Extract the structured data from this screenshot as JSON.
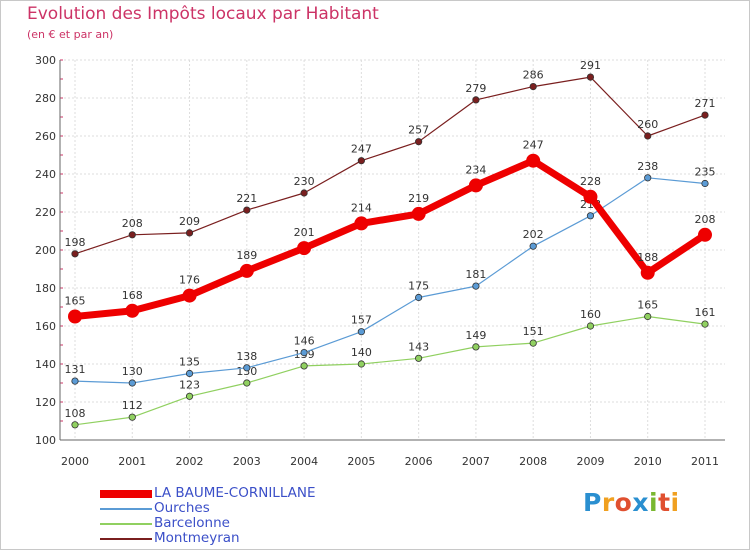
{
  "chart_data": {
    "type": "line",
    "title": "Evolution des Impôts locaux par Habitant",
    "subtitle": "(en € et par an)",
    "xlabel": "",
    "ylabel": "",
    "categories": [
      "2000",
      "2001",
      "2002",
      "2003",
      "2004",
      "2005",
      "2006",
      "2007",
      "2008",
      "2009",
      "2010",
      "2011"
    ],
    "ylim": [
      100,
      300
    ],
    "yticks": [
      100,
      120,
      140,
      160,
      180,
      200,
      220,
      240,
      260,
      280,
      300
    ],
    "grid": true,
    "legend_position": "bottom-left",
    "series": [
      {
        "name": "Montmeyran",
        "color": "#7a1f1f",
        "values": [
          198,
          208,
          209,
          221,
          230,
          247,
          257,
          279,
          286,
          291,
          260,
          271
        ]
      },
      {
        "name": "Barcelonne",
        "color": "#90d060",
        "values": [
          108,
          112,
          123,
          130,
          139,
          140,
          143,
          149,
          151,
          160,
          165,
          161
        ]
      },
      {
        "name": "Ourches",
        "color": "#5b9bd5",
        "values": [
          131,
          130,
          135,
          138,
          146,
          157,
          175,
          181,
          202,
          218,
          238,
          235
        ]
      },
      {
        "name": "LA BAUME-CORNILLANE",
        "color": "#ee0000",
        "values": [
          165,
          168,
          176,
          189,
          201,
          214,
          219,
          234,
          247,
          228,
          188,
          208
        ]
      }
    ],
    "legend_order": [
      "LA BAUME-CORNILLANE",
      "Ourches",
      "Barcelonne",
      "Montmeyran"
    ]
  },
  "logo": {
    "letters": [
      "P",
      "r",
      "o",
      "x",
      "i",
      "t",
      "i"
    ]
  }
}
